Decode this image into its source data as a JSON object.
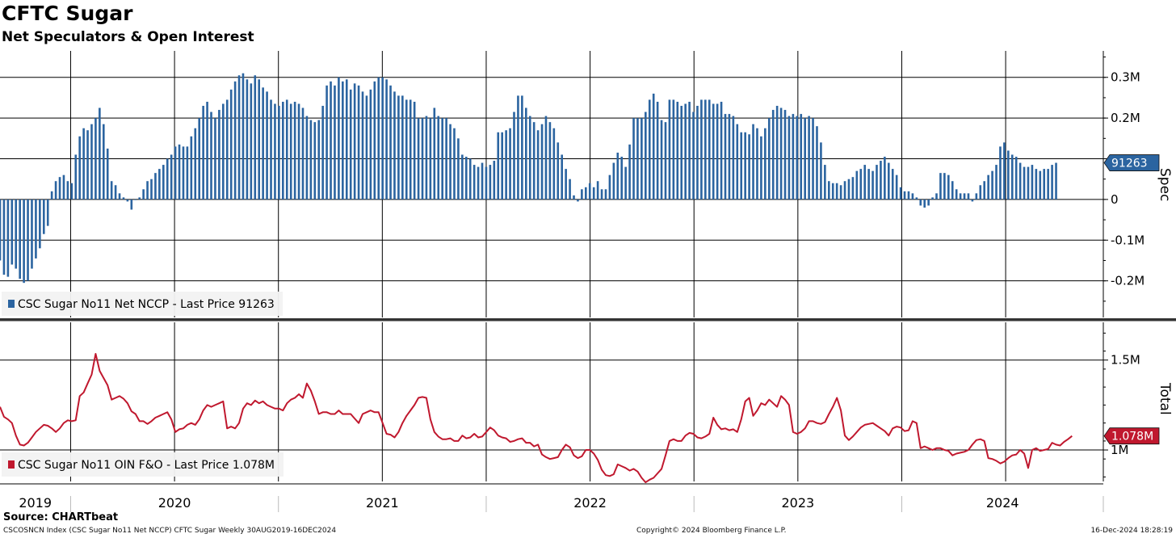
{
  "header": {
    "title": "CFTC Sugar",
    "subtitle": "Net Speculators & Open Interest"
  },
  "footer": {
    "source": "Source: CHARTbeat",
    "left_note": "CSCOSNCN Index (CSC Sugar No11 Net NCCP) CFTC Sugar  Weekly 30AUG2019-16DEC2024",
    "copyright": "Copyright© 2024 Bloomberg Finance L.P.",
    "timestamp": "16-Dec-2024 18:28:19"
  },
  "chart_data": [
    {
      "type": "bar",
      "panel": "top",
      "axis_title": "Spec",
      "ylim": [
        -0.29,
        0.365
      ],
      "yticks": [
        {
          "value": 0.3,
          "label": "0.3M"
        },
        {
          "value": 0.2,
          "label": "0.2M"
        },
        {
          "value": 0.1,
          "label": ""
        },
        {
          "value": 0,
          "label": "0"
        },
        {
          "value": -0.1,
          "label": "-0.1M"
        },
        {
          "value": -0.2,
          "label": "-0.2M"
        }
      ],
      "x_start": 2019.66,
      "x_step_years": 0.01918,
      "color": "#2b64a0",
      "legend": "CSC Sugar No11 Net NCCP - Last Price 91263",
      "last_value_label": "91263",
      "values_in_millions": [
        -0.15,
        -0.185,
        -0.19,
        -0.16,
        -0.17,
        -0.195,
        -0.205,
        -0.2,
        -0.17,
        -0.145,
        -0.12,
        -0.085,
        -0.065,
        0.02,
        0.045,
        0.055,
        0.06,
        0.045,
        0.04,
        0.11,
        0.155,
        0.175,
        0.17,
        0.185,
        0.2,
        0.225,
        0.185,
        0.125,
        0.045,
        0.035,
        0.015,
        0.005,
        -0.005,
        -0.025,
        0.0,
        0.005,
        0.025,
        0.045,
        0.05,
        0.065,
        0.075,
        0.085,
        0.1,
        0.11,
        0.13,
        0.135,
        0.13,
        0.13,
        0.155,
        0.175,
        0.2,
        0.23,
        0.24,
        0.215,
        0.2,
        0.22,
        0.235,
        0.245,
        0.27,
        0.29,
        0.305,
        0.31,
        0.295,
        0.285,
        0.305,
        0.295,
        0.275,
        0.265,
        0.245,
        0.235,
        0.23,
        0.24,
        0.245,
        0.235,
        0.24,
        0.235,
        0.225,
        0.205,
        0.195,
        0.19,
        0.195,
        0.23,
        0.28,
        0.29,
        0.28,
        0.3,
        0.29,
        0.295,
        0.27,
        0.285,
        0.28,
        0.265,
        0.255,
        0.27,
        0.29,
        0.3,
        0.3,
        0.295,
        0.28,
        0.265,
        0.255,
        0.255,
        0.245,
        0.245,
        0.24,
        0.2,
        0.2,
        0.205,
        0.2,
        0.225,
        0.205,
        0.2,
        0.2,
        0.185,
        0.175,
        0.15,
        0.11,
        0.105,
        0.1,
        0.085,
        0.08,
        0.09,
        0.08,
        0.085,
        0.095,
        0.165,
        0.165,
        0.17,
        0.175,
        0.215,
        0.255,
        0.255,
        0.225,
        0.205,
        0.19,
        0.17,
        0.185,
        0.205,
        0.19,
        0.175,
        0.14,
        0.11,
        0.075,
        0.05,
        0.01,
        -0.005,
        0.025,
        0.03,
        0.04,
        0.03,
        0.045,
        0.025,
        0.025,
        0.06,
        0.09,
        0.115,
        0.105,
        0.08,
        0.135,
        0.2,
        0.2,
        0.2,
        0.215,
        0.245,
        0.26,
        0.24,
        0.195,
        0.19,
        0.245,
        0.245,
        0.24,
        0.23,
        0.235,
        0.24,
        0.215,
        0.23,
        0.245,
        0.245,
        0.245,
        0.235,
        0.235,
        0.24,
        0.21,
        0.21,
        0.205,
        0.185,
        0.165,
        0.165,
        0.16,
        0.185,
        0.175,
        0.155,
        0.175,
        0.2,
        0.22,
        0.23,
        0.225,
        0.22,
        0.205,
        0.21,
        0.205,
        0.21,
        0.2,
        0.205,
        0.2,
        0.18,
        0.14,
        0.085,
        0.045,
        0.04,
        0.04,
        0.035,
        0.045,
        0.05,
        0.055,
        0.07,
        0.075,
        0.085,
        0.075,
        0.07,
        0.085,
        0.095,
        0.105,
        0.09,
        0.075,
        0.06,
        0.03,
        0.02,
        0.02,
        0.015,
        0.005,
        -0.015,
        -0.02,
        -0.015,
        0.005,
        0.015,
        0.065,
        0.065,
        0.06,
        0.045,
        0.025,
        0.015,
        0.015,
        0.015,
        -0.005,
        0.015,
        0.035,
        0.045,
        0.06,
        0.07,
        0.085,
        0.13,
        0.14,
        0.12,
        0.11,
        0.105,
        0.09,
        0.08,
        0.08,
        0.085,
        0.075,
        0.07,
        0.075,
        0.075,
        0.085,
        0.09
      ]
    },
    {
      "type": "line",
      "panel": "bottom",
      "axis_title": "Total",
      "ylim": [
        0.825,
        1.71
      ],
      "yticks": [
        {
          "value": 1.5,
          "label": "1.5M"
        },
        {
          "value": 1.0,
          "label": "1M"
        }
      ],
      "x_start": 2019.66,
      "x_step_years": 0.01918,
      "color": "#c0182e",
      "legend": "CSC Sugar No11 OIN F&O - Last Price 1.078M",
      "last_value_label": "1.078M",
      "values_in_millions": [
        1.24,
        1.185,
        1.17,
        1.15,
        1.08,
        1.03,
        1.025,
        1.04,
        1.07,
        1.1,
        1.12,
        1.14,
        1.135,
        1.12,
        1.1,
        1.12,
        1.15,
        1.165,
        1.16,
        1.165,
        1.3,
        1.32,
        1.37,
        1.42,
        1.535,
        1.44,
        1.4,
        1.36,
        1.28,
        1.29,
        1.3,
        1.285,
        1.26,
        1.215,
        1.2,
        1.16,
        1.16,
        1.145,
        1.16,
        1.18,
        1.19,
        1.2,
        1.21,
        1.17,
        1.1,
        1.115,
        1.12,
        1.14,
        1.15,
        1.14,
        1.17,
        1.22,
        1.25,
        1.24,
        1.25,
        1.26,
        1.27,
        1.12,
        1.13,
        1.12,
        1.15,
        1.23,
        1.26,
        1.25,
        1.275,
        1.26,
        1.27,
        1.25,
        1.24,
        1.23,
        1.23,
        1.22,
        1.26,
        1.28,
        1.29,
        1.31,
        1.29,
        1.37,
        1.33,
        1.27,
        1.2,
        1.21,
        1.21,
        1.2,
        1.2,
        1.22,
        1.2,
        1.2,
        1.2,
        1.175,
        1.15,
        1.2,
        1.21,
        1.22,
        1.21,
        1.21,
        1.15,
        1.09,
        1.085,
        1.07,
        1.1,
        1.15,
        1.19,
        1.22,
        1.25,
        1.29,
        1.295,
        1.29,
        1.17,
        1.1,
        1.075,
        1.06,
        1.06,
        1.065,
        1.05,
        1.05,
        1.08,
        1.065,
        1.07,
        1.09,
        1.07,
        1.075,
        1.1,
        1.125,
        1.11,
        1.08,
        1.07,
        1.065,
        1.045,
        1.05,
        1.06,
        1.065,
        1.04,
        1.04,
        1.02,
        1.03,
        0.975,
        0.96,
        0.95,
        0.955,
        0.96,
        1.0,
        1.03,
        1.015,
        0.97,
        0.955,
        0.965,
        1.0,
        1.0,
        0.98,
        0.945,
        0.89,
        0.86,
        0.855,
        0.865,
        0.92,
        0.91,
        0.9,
        0.885,
        0.895,
        0.88,
        0.845,
        0.82,
        0.835,
        0.845,
        0.87,
        0.895,
        0.97,
        1.05,
        1.06,
        1.05,
        1.05,
        1.08,
        1.095,
        1.09,
        1.07,
        1.065,
        1.075,
        1.09,
        1.18,
        1.14,
        1.115,
        1.12,
        1.11,
        1.115,
        1.1,
        1.17,
        1.27,
        1.29,
        1.19,
        1.22,
        1.26,
        1.25,
        1.28,
        1.26,
        1.24,
        1.3,
        1.28,
        1.25,
        1.1,
        1.09,
        1.1,
        1.12,
        1.16,
        1.16,
        1.15,
        1.145,
        1.155,
        1.2,
        1.24,
        1.29,
        1.22,
        1.08,
        1.055,
        1.075,
        1.1,
        1.125,
        1.14,
        1.145,
        1.15,
        1.135,
        1.12,
        1.105,
        1.08,
        1.12,
        1.13,
        1.125,
        1.105,
        1.11,
        1.16,
        1.15,
        1.01,
        1.02,
        1.01,
        1.0,
        1.01,
        1.01,
        1.0,
        0.995,
        0.97,
        0.98,
        0.985,
        0.99,
        1.0,
        1.03,
        1.055,
        1.06,
        1.05,
        0.955,
        0.95,
        0.94,
        0.925,
        0.935,
        0.955,
        0.97,
        0.975,
        1.0,
        0.98,
        0.9,
        1.0,
        1.01,
        0.995,
        1.0,
        1.005,
        1.04,
        1.03,
        1.025,
        1.045,
        1.06,
        1.078
      ]
    }
  ],
  "x_axis": {
    "years": [
      "2019",
      "2020",
      "2021",
      "2022",
      "2023",
      "2024"
    ],
    "first_year_start": 2019.66,
    "domain_end": 2024.97
  }
}
